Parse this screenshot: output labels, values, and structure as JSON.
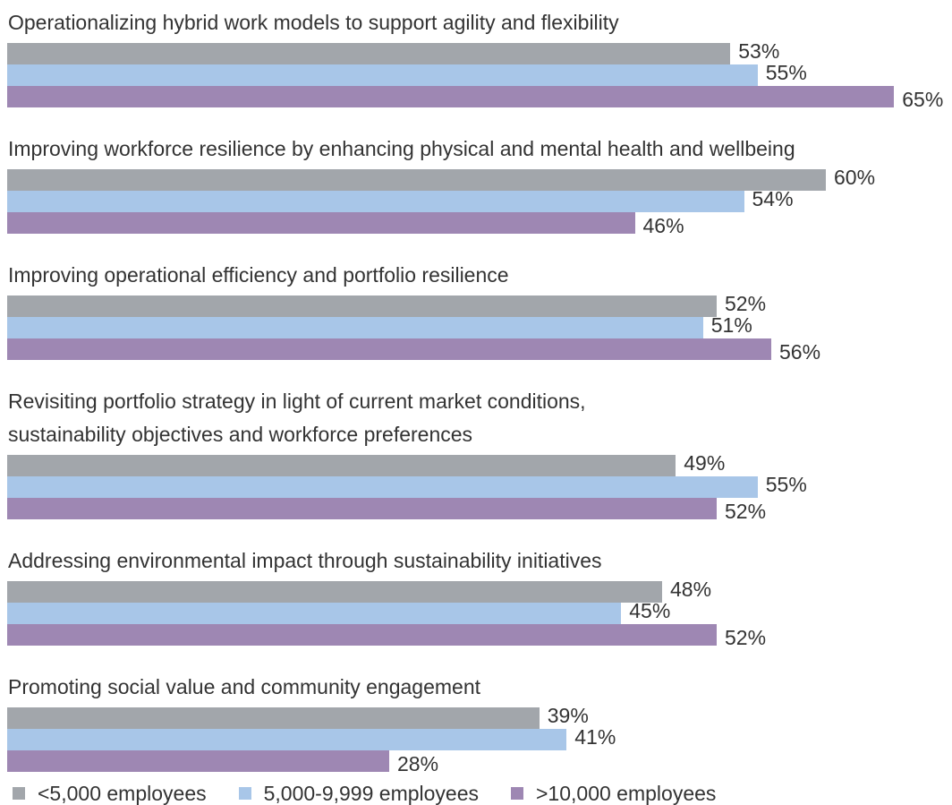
{
  "chart_data": {
    "type": "bar",
    "orientation": "horizontal",
    "categories": [
      "Operationalizing hybrid work models to support agility and flexibility",
      "Improving workforce resilience by enhancing physical and mental health and wellbeing",
      "Improving operational efficiency and portfolio resilience",
      "Revisiting portfolio strategy in light of current market conditions,\nsustainability objectives and workforce preferences",
      "Addressing environmental impact through sustainability initiatives",
      "Promoting social value and community engagement"
    ],
    "series": [
      {
        "name": "<5,000 employees",
        "color": "#a2a6ab",
        "values": [
          53,
          60,
          52,
          49,
          48,
          39
        ],
        "value_labels": [
          "53%",
          "60%",
          "52%",
          "49%",
          "48%",
          "39%"
        ]
      },
      {
        "name": "5,000-9,999 employees",
        "color": "#a8c6e8",
        "values": [
          55,
          54,
          51,
          55,
          45,
          41
        ],
        "value_labels": [
          "55%",
          "54%",
          "51%",
          "55%",
          "45%",
          "41%"
        ]
      },
      {
        "name": ">10,000 employees",
        "color": "#9e87b3",
        "values": [
          65,
          46,
          56,
          52,
          52,
          28
        ],
        "value_labels": [
          "65%",
          "46%",
          "56%",
          "52%",
          "52%",
          "28%"
        ]
      }
    ],
    "legend": "bottom"
  }
}
